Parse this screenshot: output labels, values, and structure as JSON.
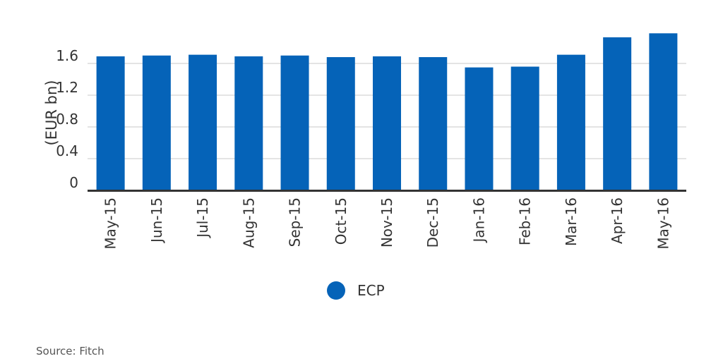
{
  "chart_data": {
    "type": "bar",
    "categories": [
      "May-15",
      "Jun-15",
      "Jul-15",
      "Aug-15",
      "Sep-15",
      "Oct-15",
      "Nov-15",
      "Dec-15",
      "Jan-16",
      "Feb-16",
      "Mar-16",
      "Apr-16",
      "May-16"
    ],
    "series": [
      {
        "name": "ECP",
        "values": [
          1.69,
          1.7,
          1.71,
          1.69,
          1.7,
          1.68,
          1.69,
          1.68,
          1.55,
          1.56,
          1.71,
          1.93,
          1.98
        ]
      }
    ],
    "ylabel": "(EUR bn)",
    "xlabel": "",
    "ylim": [
      0,
      2.0
    ],
    "yticks": [
      "0",
      "0.4",
      "0.8",
      "1.2",
      "1.6"
    ],
    "ytick_values": [
      0,
      0.4,
      0.8,
      1.2,
      1.6
    ],
    "grid": true,
    "legend_position": "bottom",
    "bar_color": "#0563b8"
  },
  "source": "Source: Fitch"
}
